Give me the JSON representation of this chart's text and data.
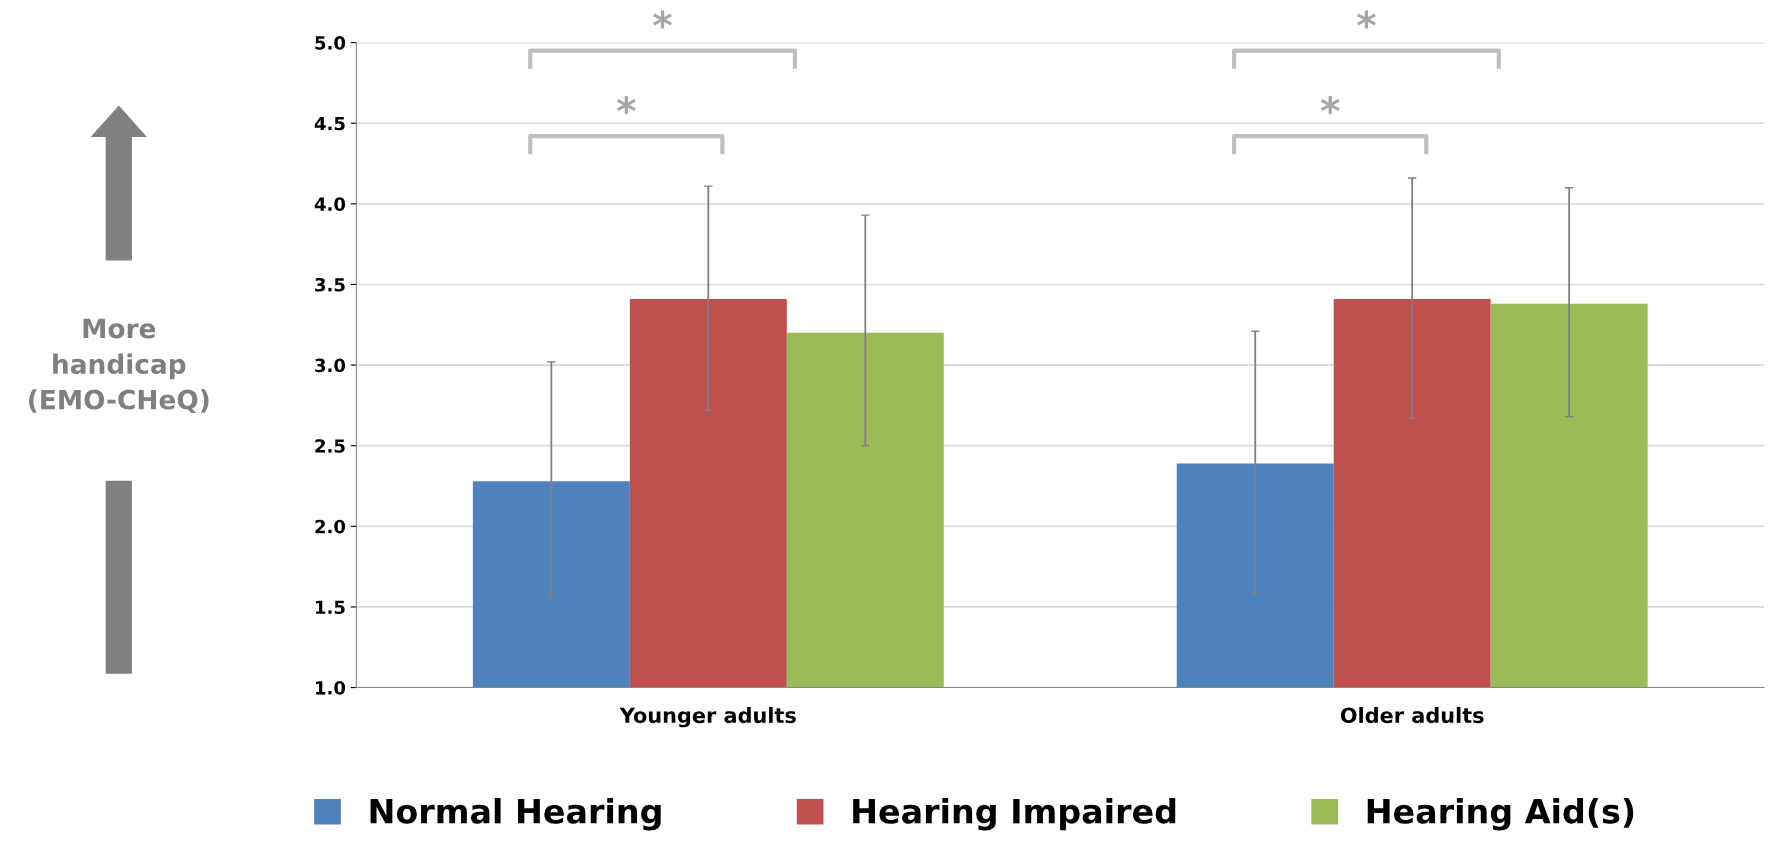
{
  "chart_data": {
    "type": "bar",
    "ylabel": "More\nhandicap\n(EMO-CHeQ)",
    "categories": [
      "Younger adults",
      "Older adults"
    ],
    "series": [
      {
        "name": "Normal Hearing",
        "color": "#4f81bd",
        "values": [
          2.28,
          2.39
        ],
        "errors": [
          [
            1.56,
            3.02
          ],
          [
            1.58,
            3.21
          ]
        ]
      },
      {
        "name": "Hearing Impaired",
        "color": "#c0504d",
        "values": [
          3.41,
          3.41
        ],
        "errors": [
          [
            2.72,
            4.11
          ],
          [
            2.67,
            4.16
          ]
        ]
      },
      {
        "name": "Hearing Aid(s)",
        "color": "#9bbb59",
        "values": [
          3.2,
          3.38
        ],
        "errors": [
          [
            2.5,
            3.93
          ],
          [
            2.68,
            4.1
          ]
        ]
      }
    ],
    "ylim": [
      1.0,
      5.0
    ],
    "yticks": [
      {
        "value": 1.0,
        "label": "1.0"
      },
      {
        "value": 1.5,
        "label": "1.5"
      },
      {
        "value": 2.0,
        "label": "2.0"
      },
      {
        "value": 2.5,
        "label": "2.5"
      },
      {
        "value": 3.0,
        "label": "3.0"
      },
      {
        "value": 3.5,
        "label": "3.5"
      },
      {
        "value": 4.0,
        "label": "4.0"
      },
      {
        "value": 4.5,
        "label": "4.5"
      },
      {
        "value": 5.0,
        "label": "5.0"
      }
    ],
    "grid": "y",
    "legend": "bottom",
    "annotations": [
      "*",
      "*",
      "*",
      "*"
    ]
  }
}
